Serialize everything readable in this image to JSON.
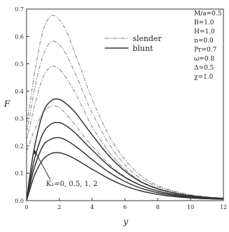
{
  "chart_data": {
    "type": "line",
    "xlabel": "y",
    "ylabel": "F",
    "xlim": [
      0,
      12
    ],
    "ylim": [
      0,
      0.7
    ],
    "xticks": [
      "0",
      "2",
      "4",
      "6",
      "8",
      "10",
      "12"
    ],
    "yticks": [
      "0.0",
      "0.1",
      "0.2",
      "0.3",
      "0.4",
      "0.5",
      "0.6",
      "0.7"
    ],
    "grid": false,
    "legend": {
      "placement": "top-center",
      "entries": [
        {
          "name": "slender",
          "style": "dash-dot",
          "color": "#8c8c8c"
        },
        {
          "name": "blunt",
          "style": "solid",
          "color": "#333333"
        }
      ]
    },
    "parameters": [
      "M/a=0.5",
      "B=1.0",
      "H=1.0",
      "n=0.0",
      "Pr=0.7",
      "ω=0.8",
      "Δ=0.5",
      "χ=1.0"
    ],
    "annotation": "K₁=0, 0.5, 1, 2",
    "series": [
      {
        "name": "slender",
        "k1": "0",
        "peak_x": 1.5,
        "peak": 0.675,
        "x_zero": 2.6,
        "x": [
          0,
          0.2,
          0.5,
          1,
          1.5,
          2,
          2.5,
          3,
          3.5,
          4,
          5,
          6,
          7,
          8,
          9,
          10,
          11,
          12
        ],
        "y": [
          0.28,
          0.35,
          0.47,
          0.62,
          0.675,
          0.66,
          0.61,
          0.53,
          0.45,
          0.37,
          0.24,
          0.15,
          0.09,
          0.055,
          0.035,
          0.022,
          0.014,
          0.01
        ]
      },
      {
        "name": "slender",
        "k1": "0.5",
        "peak_x": 1.5,
        "peak": 0.58,
        "x_zero": 2.6,
        "x": [
          0,
          0.2,
          0.5,
          1,
          1.5,
          2,
          2.5,
          3,
          3.5,
          4,
          5,
          6,
          7,
          8,
          9,
          10,
          11,
          12
        ],
        "y": [
          0.25,
          0.31,
          0.41,
          0.53,
          0.58,
          0.57,
          0.525,
          0.46,
          0.39,
          0.32,
          0.21,
          0.13,
          0.08,
          0.05,
          0.032,
          0.02,
          0.013,
          0.009
        ]
      },
      {
        "name": "slender",
        "k1": "1",
        "peak_x": 1.5,
        "peak": 0.49,
        "x_zero": 2.6,
        "x": [
          0,
          0.2,
          0.5,
          1,
          1.5,
          2,
          2.5,
          3,
          3.5,
          4,
          5,
          6,
          7,
          8,
          9,
          10,
          11,
          12
        ],
        "y": [
          0.22,
          0.27,
          0.35,
          0.45,
          0.49,
          0.48,
          0.44,
          0.39,
          0.33,
          0.27,
          0.18,
          0.115,
          0.07,
          0.045,
          0.029,
          0.018,
          0.012,
          0.008
        ]
      },
      {
        "name": "slender",
        "k1": "2",
        "peak_x": 1.4,
        "peak": 0.345,
        "x_zero": 2.6,
        "x": [
          0,
          0.2,
          0.5,
          1,
          1.5,
          2,
          2.5,
          3,
          3.5,
          4,
          5,
          6,
          7,
          8,
          9,
          10,
          11,
          12
        ],
        "y": [
          0.18,
          0.21,
          0.26,
          0.32,
          0.345,
          0.34,
          0.31,
          0.275,
          0.235,
          0.2,
          0.135,
          0.088,
          0.056,
          0.036,
          0.023,
          0.015,
          0.01,
          0.007
        ]
      },
      {
        "name": "blunt",
        "k1": "0",
        "peak_x": 1.8,
        "peak": 0.37,
        "x_zero": 2.6,
        "x": [
          0,
          0.2,
          0.5,
          1,
          1.5,
          2,
          2.5,
          3,
          3.5,
          4,
          5,
          6,
          7,
          8,
          9,
          10,
          11,
          12
        ],
        "y": [
          0.0,
          0.09,
          0.2,
          0.32,
          0.365,
          0.37,
          0.35,
          0.32,
          0.28,
          0.24,
          0.165,
          0.108,
          0.068,
          0.043,
          0.028,
          0.018,
          0.012,
          0.008
        ]
      },
      {
        "name": "blunt",
        "k1": "0.5",
        "peak_x": 1.8,
        "peak": 0.285,
        "x_zero": 2.6,
        "x": [
          0,
          0.2,
          0.5,
          1,
          1.5,
          2,
          2.5,
          3,
          3.5,
          4,
          5,
          6,
          7,
          8,
          9,
          10,
          11,
          12
        ],
        "y": [
          0.0,
          0.07,
          0.155,
          0.245,
          0.28,
          0.285,
          0.27,
          0.245,
          0.215,
          0.185,
          0.128,
          0.085,
          0.055,
          0.035,
          0.023,
          0.015,
          0.01,
          0.007
        ]
      },
      {
        "name": "blunt",
        "k1": "1",
        "peak_x": 1.8,
        "peak": 0.23,
        "x_zero": 2.6,
        "x": [
          0,
          0.2,
          0.5,
          1,
          1.5,
          2,
          2.5,
          3,
          3.5,
          4,
          5,
          6,
          7,
          8,
          9,
          10,
          11,
          12
        ],
        "y": [
          0.0,
          0.055,
          0.125,
          0.2,
          0.225,
          0.23,
          0.218,
          0.198,
          0.175,
          0.15,
          0.105,
          0.07,
          0.045,
          0.029,
          0.019,
          0.012,
          0.008,
          0.006
        ]
      },
      {
        "name": "blunt",
        "k1": "2",
        "peak_x": 1.8,
        "peak": 0.175,
        "x_zero": 2.6,
        "x": [
          0,
          0.2,
          0.5,
          1,
          1.5,
          2,
          2.5,
          3,
          3.5,
          4,
          5,
          6,
          7,
          8,
          9,
          10,
          11,
          12
        ],
        "y": [
          0.0,
          0.04,
          0.095,
          0.15,
          0.172,
          0.175,
          0.166,
          0.151,
          0.133,
          0.115,
          0.081,
          0.054,
          0.035,
          0.023,
          0.015,
          0.01,
          0.007,
          0.005
        ]
      }
    ]
  }
}
